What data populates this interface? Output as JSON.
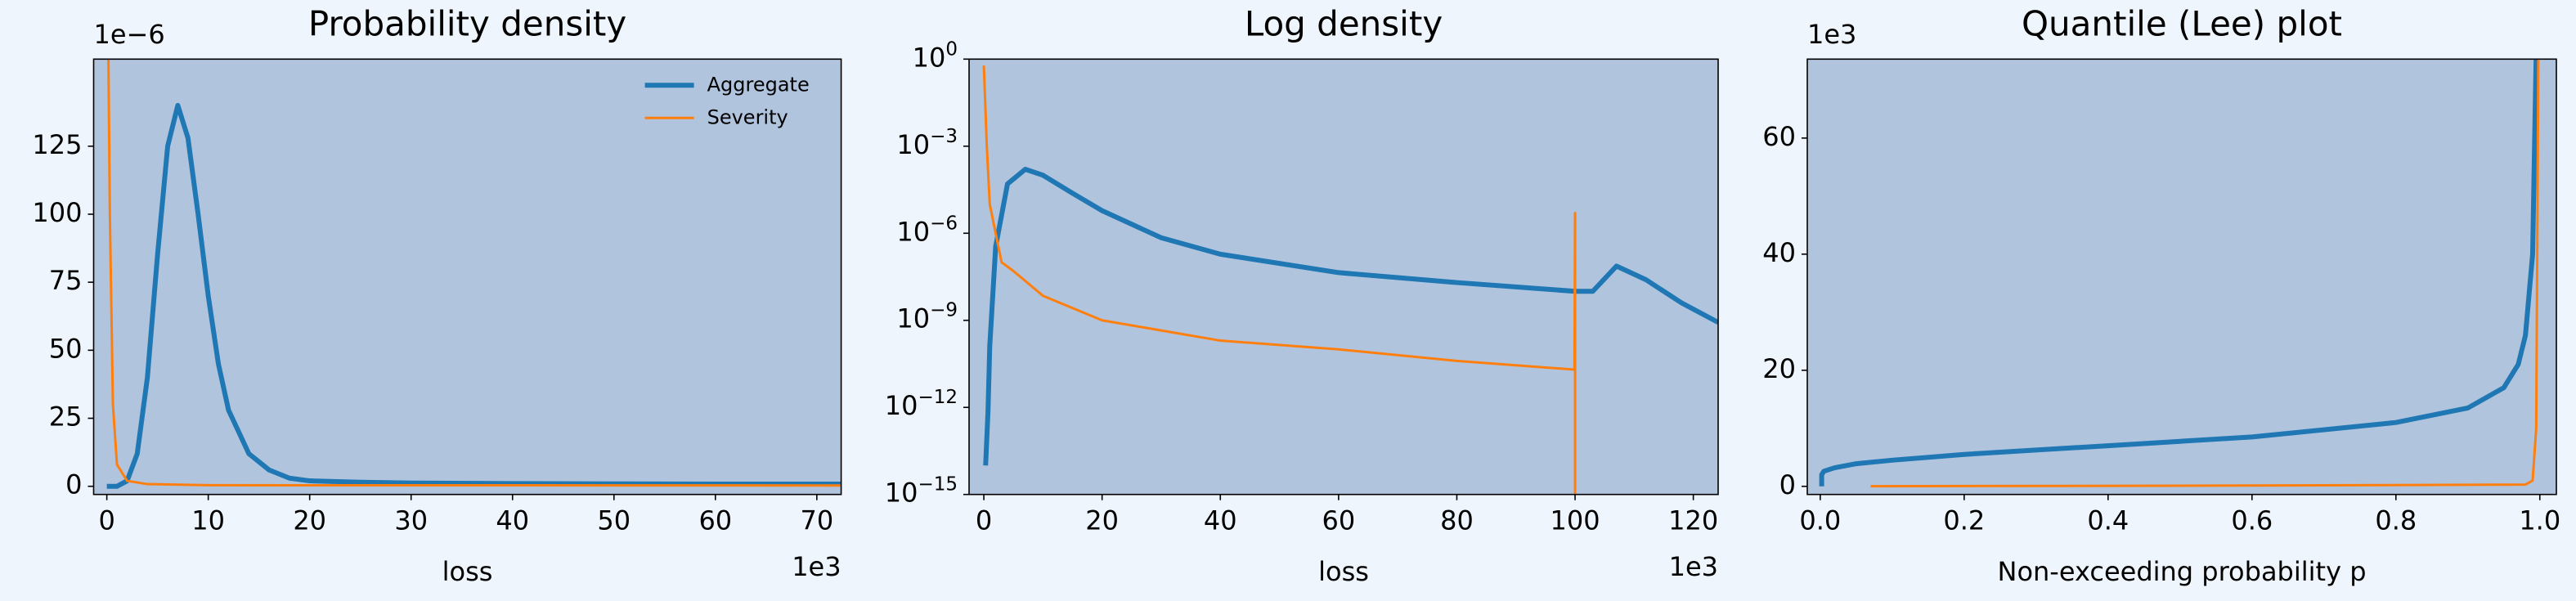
{
  "chart_data": [
    {
      "type": "line",
      "title": "Probability density",
      "xlabel": "loss",
      "x_offset_label": "1e3",
      "y_offset_label": "1e−6",
      "xlim": [
        -1.3,
        72.4
      ],
      "ylim": [
        -3,
        157
      ],
      "xticks": [
        0,
        10,
        20,
        30,
        40,
        50,
        60,
        70
      ],
      "yticks": [
        0,
        25,
        50,
        75,
        100,
        125
      ],
      "legend": "upper right",
      "series": [
        {
          "name": "Aggregate",
          "color": "#1f77b4",
          "width": 6,
          "x": [
            0,
            1,
            2,
            3,
            4,
            5,
            6,
            7,
            8,
            9,
            10,
            11,
            12,
            14,
            16,
            18,
            20,
            25,
            30,
            40,
            50,
            60,
            72.4
          ],
          "values": [
            0,
            0,
            2,
            12,
            40,
            85,
            125,
            140,
            128,
            100,
            70,
            45,
            28,
            12,
            6,
            3,
            2,
            1.5,
            1.2,
            1,
            0.9,
            0.8,
            0.8
          ]
        },
        {
          "name": "Severity",
          "color": "#ff7f0e",
          "width": 3,
          "x": [
            0.15,
            0.3,
            0.6,
            1,
            2,
            4,
            10,
            72.4
          ],
          "values": [
            160,
            100,
            30,
            8,
            2,
            0.8,
            0.4,
            0.3
          ]
        }
      ]
    },
    {
      "type": "line",
      "title": "Log density",
      "xlabel": "loss",
      "x_offset_label": "1e3",
      "yscale": "log",
      "xlim": [
        -2.5,
        124.2
      ],
      "ylim": [
        1e-15,
        1
      ],
      "xticks": [
        0,
        20,
        40,
        60,
        80,
        100,
        120
      ],
      "yticks": [
        {
          "value": 1e-15,
          "label": "10^−15"
        },
        {
          "value": 1e-12,
          "label": "10^−12"
        },
        {
          "value": 1e-09,
          "label": "10^−9"
        },
        {
          "value": 1e-06,
          "label": "10^−6"
        },
        {
          "value": 0.001,
          "label": "10^−3"
        },
        {
          "value": 1,
          "label": "10^0"
        }
      ],
      "series": [
        {
          "color": "#1f77b4",
          "width": 6,
          "x": [
            0.3,
            0.7,
            1,
            2,
            4,
            7,
            10,
            15,
            20,
            30,
            40,
            60,
            80,
            100,
            103,
            107,
            112,
            118,
            124.2
          ],
          "values": [
            1e-14,
            7e-13,
            1.3e-10,
            3.5e-07,
            5e-05,
            0.00016,
            0.0001,
            2.4e-05,
            6e-06,
            7e-07,
            1.9e-07,
            4.4e-08,
            2e-08,
            1e-08,
            1e-08,
            7.4e-08,
            2.5e-08,
            4e-09,
            8.5e-10
          ]
        },
        {
          "color": "#ff7f0e",
          "width": 3,
          "x": [
            0,
            0.5,
            1,
            3,
            5,
            10,
            20,
            40,
            60,
            80,
            99.9,
            100,
            100
          ],
          "values": [
            0.6,
            0.001,
            1e-05,
            1e-07,
            5e-08,
            7e-09,
            1e-09,
            2e-10,
            1e-10,
            4e-11,
            2e-11,
            5e-06,
            1e-15
          ]
        }
      ]
    },
    {
      "type": "line",
      "title": "Quantile (Lee) plot",
      "xlabel": "Non-exceeding probability p",
      "y_offset_label": "1e3",
      "xlim": [
        -0.018,
        1.023
      ],
      "ylim": [
        -1.4,
        73.6
      ],
      "xticks": [
        {
          "value": 0,
          "label": "0.0"
        },
        0.2,
        0.4,
        0.6,
        0.8,
        {
          "value": 1,
          "label": "1.0"
        }
      ],
      "yticks": [
        0,
        20,
        40,
        60
      ],
      "series": [
        {
          "color": "#1f77b4",
          "width": 6,
          "x": [
            0.002,
            0.002,
            0.005,
            0.02,
            0.05,
            0.1,
            0.2,
            0.4,
            0.6,
            0.8,
            0.9,
            0.95,
            0.97,
            0.98,
            0.99,
            0.995
          ],
          "values": [
            0,
            2,
            2.6,
            3.2,
            3.9,
            4.5,
            5.5,
            7,
            8.5,
            11,
            13.5,
            17,
            21,
            26,
            40,
            75
          ]
        },
        {
          "color": "#ff7f0e",
          "width": 3,
          "x": [
            0.07,
            0.5,
            0.98,
            0.99,
            0.995,
            0.998
          ],
          "values": [
            0.02,
            0.1,
            0.3,
            1,
            10,
            75
          ]
        }
      ]
    }
  ]
}
